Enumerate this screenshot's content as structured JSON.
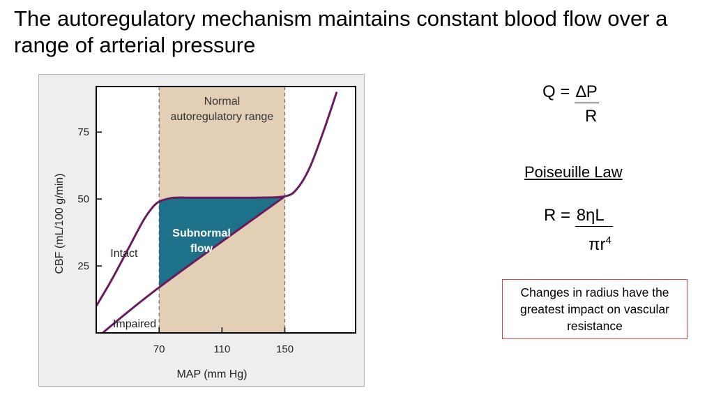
{
  "slide": {
    "title": "The autoregulatory mechanism maintains constant blood flow over a range of arterial pressure"
  },
  "equations": {
    "flow": {
      "lhs": "Q =",
      "numerator": "∆P",
      "denominator": "R"
    },
    "poiseuille_heading": "Poiseuille Law",
    "resistance": {
      "lhs": "R =",
      "numerator": "8ηL",
      "denominator": "πr",
      "exponent": "4"
    }
  },
  "note": "Changes in radius have the greatest impact on vascular resistance",
  "colors": {
    "region_fill": "#e2cfb6",
    "subnormal_fill": "#1d7289",
    "curve_stroke": "#6a1b5c",
    "plot_background": "#ffffff",
    "note_border": "#d04a4a"
  },
  "chart_data": {
    "type": "line",
    "xlabel": "MAP (mm Hg)",
    "ylabel": "CBF (mL/100 g/min)",
    "xlim": [
      30,
      195
    ],
    "ylim": [
      0,
      92
    ],
    "x_ticks": [
      70,
      110,
      150
    ],
    "y_ticks": [
      25,
      50,
      75
    ],
    "grid": false,
    "region": {
      "x": [
        70,
        150
      ],
      "label_lines": [
        "Normal",
        "autoregulatory range"
      ]
    },
    "subnormal_area": {
      "x": [
        70,
        150
      ],
      "label_lines": [
        "Subnormal",
        "flow"
      ]
    },
    "series": [
      {
        "name": "Intact",
        "x": [
          30,
          40,
          50,
          60,
          66,
          70,
          75,
          80,
          90,
          110,
          130,
          150,
          158,
          166,
          175,
          183
        ],
        "y": [
          10,
          20,
          31,
          42,
          47,
          49,
          50,
          50.5,
          50.5,
          50.5,
          50.5,
          51,
          54,
          62,
          76,
          90
        ]
      },
      {
        "name": "Impaired",
        "x": [
          30,
          70,
          150
        ],
        "y": [
          -2,
          17,
          51
        ]
      }
    ]
  }
}
